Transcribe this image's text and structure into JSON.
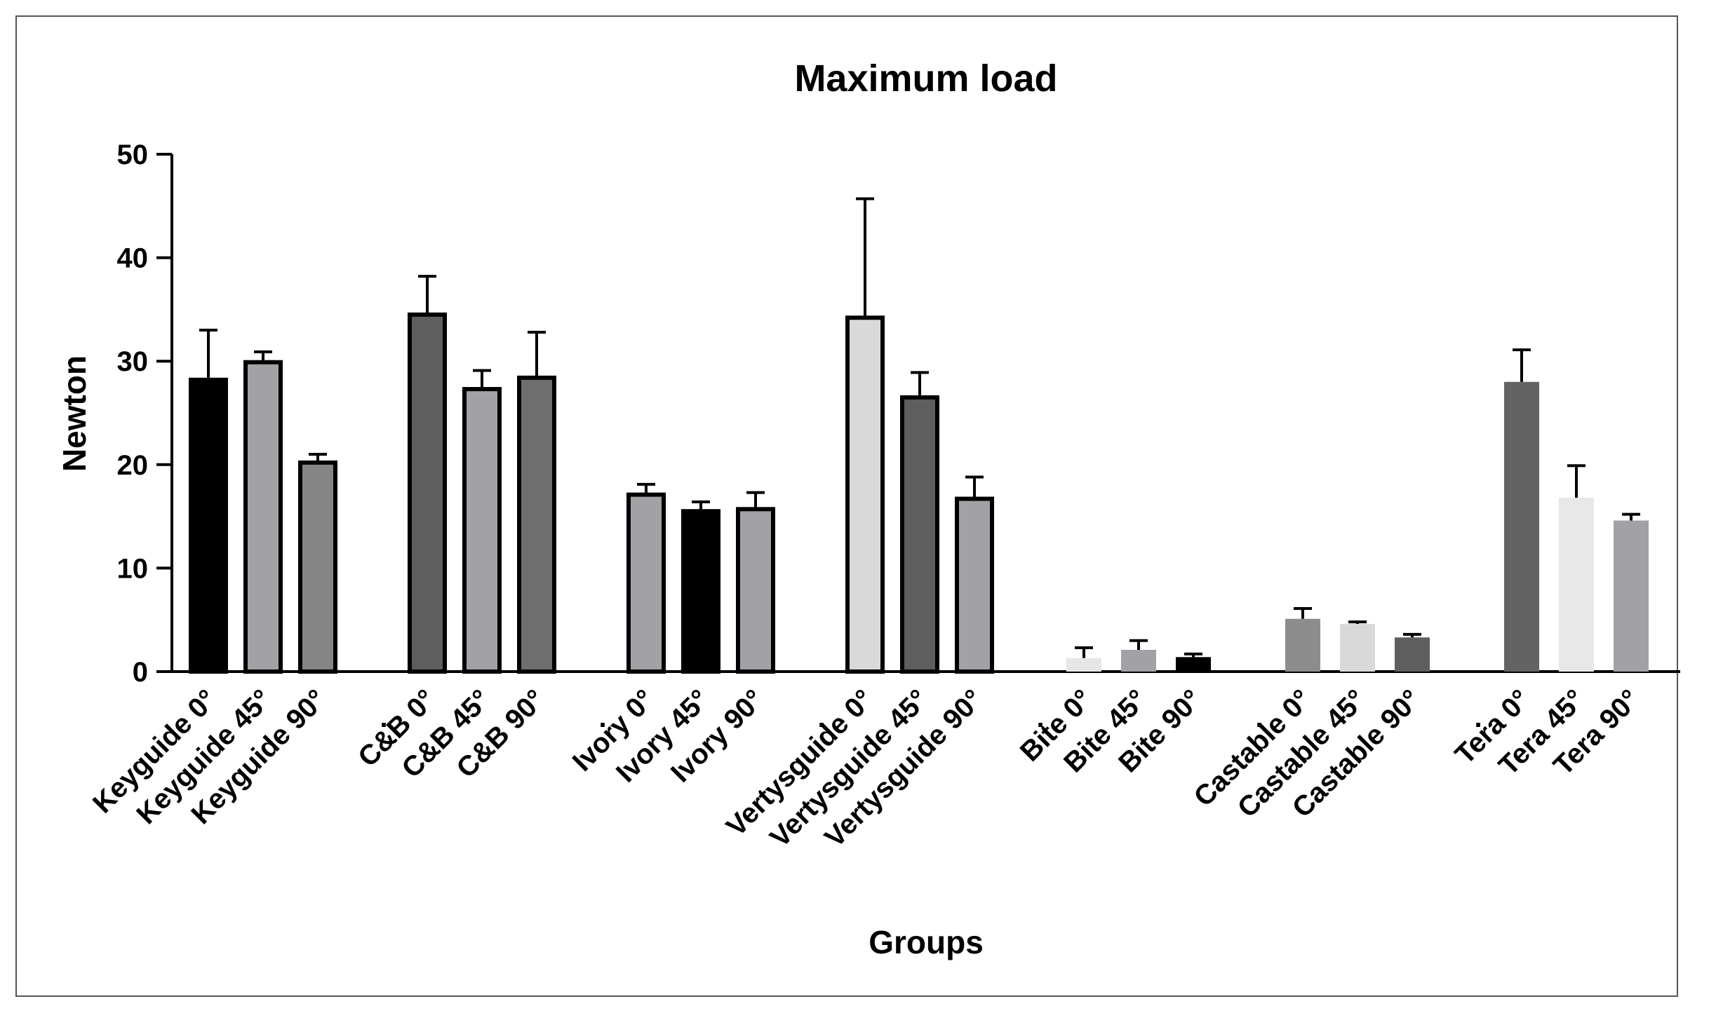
{
  "chart_data": {
    "type": "bar",
    "title": "Maximum load",
    "xlabel": "Groups",
    "ylabel": "Newton",
    "ylim": [
      0,
      50
    ],
    "yticks": [
      0,
      10,
      20,
      30,
      40,
      50
    ],
    "group_separator": ".",
    "bars": [
      {
        "label": "Keyguide 0°",
        "value": 28.2,
        "error": 4.8,
        "color": "#000000",
        "outlined": true
      },
      {
        "label": "Keyguide 45°",
        "value": 29.9,
        "error": 1.0,
        "color": "#a2a2a6",
        "outlined": true
      },
      {
        "label": "Keyguide 90°",
        "value": 20.2,
        "error": 0.8,
        "color": "#858585",
        "outlined": true
      },
      {
        "label": "C&B 0°",
        "value": 34.5,
        "error": 3.7,
        "color": "#5e5e5e",
        "outlined": true
      },
      {
        "label": "C&B 45°",
        "value": 27.3,
        "error": 1.8,
        "color": "#a2a2a6",
        "outlined": true
      },
      {
        "label": "C&B 90°",
        "value": 28.4,
        "error": 4.4,
        "color": "#6e6e6e",
        "outlined": true
      },
      {
        "label": "Ivory 0°",
        "value": 17.1,
        "error": 1.0,
        "color": "#a2a2a6",
        "outlined": true
      },
      {
        "label": "Ivory 45°",
        "value": 15.5,
        "error": 0.9,
        "color": "#000000",
        "outlined": true
      },
      {
        "label": "Ivory 90°",
        "value": 15.7,
        "error": 1.6,
        "color": "#a2a2a6",
        "outlined": true
      },
      {
        "label": "Vertysguide 0°",
        "value": 34.2,
        "error": 11.5,
        "color": "#d9d9d9",
        "outlined": true
      },
      {
        "label": "Vertysguide 45°",
        "value": 26.5,
        "error": 2.4,
        "color": "#5e5e5e",
        "outlined": true
      },
      {
        "label": "Vertysguide 90°",
        "value": 16.7,
        "error": 2.1,
        "color": "#a2a2a6",
        "outlined": true
      },
      {
        "label": "Bite 0°",
        "value": 1.3,
        "error": 1.0,
        "color": "#e6e6e6",
        "outlined": false
      },
      {
        "label": "Bite 45°",
        "value": 2.1,
        "error": 0.9,
        "color": "#a2a2a6",
        "outlined": false
      },
      {
        "label": "Bite 90°",
        "value": 1.4,
        "error": 0.3,
        "color": "#000000",
        "outlined": false
      },
      {
        "label": "Castable 0°",
        "value": 5.1,
        "error": 1.0,
        "color": "#8c8c8c",
        "outlined": false
      },
      {
        "label": "Castable 45°",
        "value": 4.6,
        "error": 0.2,
        "color": "#d9d9d9",
        "outlined": false
      },
      {
        "label": "Castable 90°",
        "value": 3.3,
        "error": 0.3,
        "color": "#5e5e5e",
        "outlined": false
      },
      {
        "label": "Tera 0°",
        "value": 28.0,
        "error": 3.1,
        "color": "#636363",
        "outlined": false
      },
      {
        "label": "Tera 45°",
        "value": 16.8,
        "error": 3.1,
        "color": "#e8e8e8",
        "outlined": false
      },
      {
        "label": "Tera 90°",
        "value": 14.6,
        "error": 0.6,
        "color": "#a2a2a6",
        "outlined": false
      }
    ]
  }
}
